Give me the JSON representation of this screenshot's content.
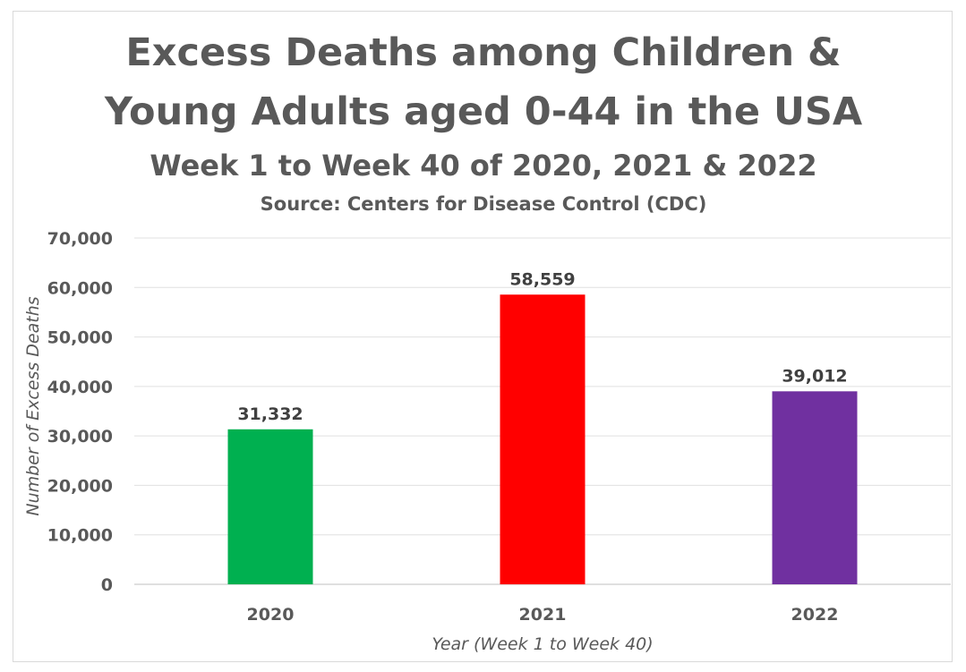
{
  "chart_data": {
    "type": "bar",
    "title": "Excess Deaths among Children & Young Adults aged 0-44 in the USA",
    "title_lines": [
      "Excess Deaths among Children &",
      "Young Adults aged 0-44 in the USA"
    ],
    "subtitle": "Week 1 to Week 40 of 2020, 2021 & 2022",
    "source": "Source: Centers for Disease Control (CDC)",
    "xlabel": "Year (Week 1 to Week 40)",
    "ylabel": "Number of Excess Deaths",
    "categories": [
      "2020",
      "2021",
      "2022"
    ],
    "values": [
      31332,
      58559,
      39012
    ],
    "data_labels": [
      "31,332",
      "58,559",
      "39,012"
    ],
    "colors": [
      "#00b050",
      "#ff0000",
      "#7030a0"
    ],
    "ylim": [
      0,
      70000
    ],
    "yticks": [
      0,
      10000,
      20000,
      30000,
      40000,
      50000,
      60000,
      70000
    ],
    "ytick_labels": [
      "0",
      "10,000",
      "20,000",
      "30,000",
      "40,000",
      "50,000",
      "60,000",
      "70,000"
    ],
    "grid": true,
    "legend": "none"
  }
}
